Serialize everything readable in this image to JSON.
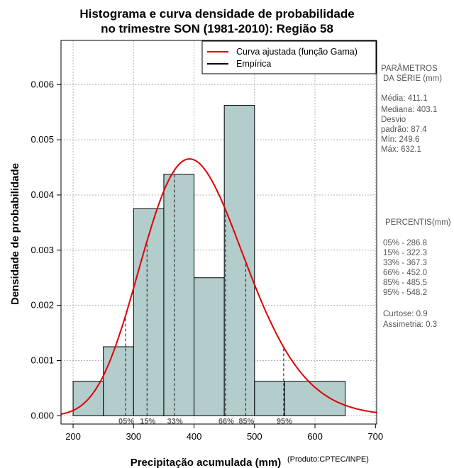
{
  "chart_data": {
    "type": "bar",
    "title_line1": "Histograma e curva densidade de probabilidade",
    "title_line2": "no trimestre SON (1981-2010): Região 58",
    "xlabel": "Precipitação acumulada (mm)",
    "ylabel": "Densidade de probabilidade",
    "credit": "(Produto:CPTEC/INPE)",
    "xlim": [
      180,
      702
    ],
    "ylim": [
      -0.00015,
      0.0068
    ],
    "xticks": [
      200,
      300,
      400,
      500,
      600,
      700
    ],
    "yticks": [
      "0.000",
      "0.001",
      "0.002",
      "0.003",
      "0.004",
      "0.005",
      "0.006"
    ],
    "grid": true,
    "bins": [
      {
        "from": 200,
        "to": 250,
        "density": 0.000625
      },
      {
        "from": 250,
        "to": 300,
        "density": 0.00125
      },
      {
        "from": 300,
        "to": 350,
        "density": 0.00375
      },
      {
        "from": 350,
        "to": 400,
        "density": 0.004375
      },
      {
        "from": 400,
        "to": 450,
        "density": 0.0025
      },
      {
        "from": 450,
        "to": 500,
        "density": 0.005625
      },
      {
        "from": 500,
        "to": 550,
        "density": 0.000625
      },
      {
        "from": 550,
        "to": 650,
        "density": 0.000625
      }
    ],
    "gamma_fit": {
      "mean": 411.1,
      "sd": 87.4
    },
    "legend": [
      {
        "label": "Curva ajustada (função Gama)",
        "color": "#e00000"
      },
      {
        "label": "Empírica",
        "color": "#000000"
      }
    ],
    "percentile_markers": [
      {
        "label": "05%",
        "value": 286.8
      },
      {
        "label": "15%",
        "value": 322.3
      },
      {
        "label": "33%",
        "value": 367.3
      },
      {
        "label": "66%",
        "value": 452.0
      },
      {
        "label": "85%",
        "value": 485.5
      },
      {
        "label": "95%",
        "value": 548.2
      }
    ],
    "colors": {
      "bar_fill": "#b3cccc",
      "curve": "#e00000",
      "grid": "#b4b4b4"
    }
  },
  "side_panel": {
    "params_title1": "PARÂMETROS",
    "params_title2": "DA SÉRIE (mm)",
    "media": "Média:  411.1",
    "mediana": "Mediana:  403.1",
    "desvio1": "Desvio",
    "desvio2": "padrão:  87.4",
    "min": "Mín:  249.6",
    "max": "Máx:  632.1",
    "percentis_title": "PERCENTIS(mm)",
    "percentis": [
      "05% -   286.8",
      "15% -   322.3",
      "33% -   367.3",
      "66% -   452.0",
      "85% -   485.5",
      "95% -   548.2"
    ],
    "curtose": "Curtose:  0.9",
    "assimetria": "Assimetria:  0.3"
  }
}
